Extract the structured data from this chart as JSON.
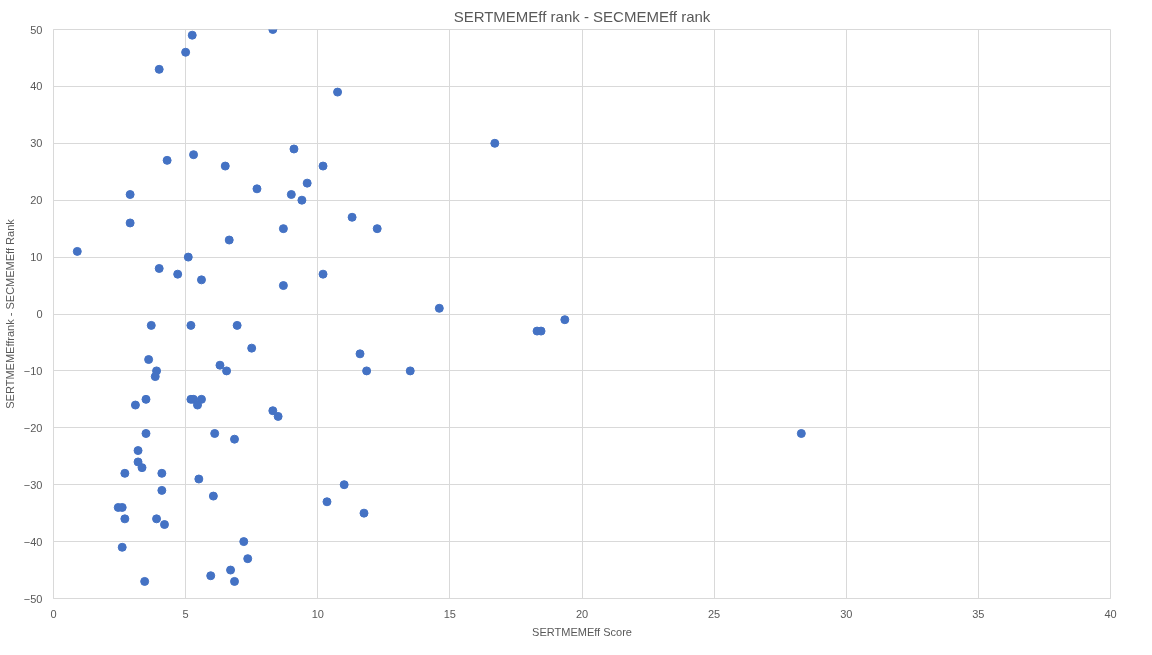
{
  "chart_data": {
    "type": "scatter",
    "title": "SERTMEMEff rank - SECMEMEff rank",
    "xlabel": "SERTMEMEff Score",
    "ylabel": "SERTMEMEffrank - SECMEMEff Rank",
    "xlim": [
      0,
      40
    ],
    "xticks": [
      0,
      5,
      10,
      15,
      20,
      25,
      30,
      35,
      40
    ],
    "ylim": [
      -50,
      50
    ],
    "yticks": [
      -50,
      -40,
      -30,
      -20,
      -10,
      0,
      10,
      20,
      30,
      40,
      50
    ],
    "grid": true,
    "marker": "circle",
    "series": [
      {
        "color": "#4472c4",
        "x": [
          0.9,
          2.9,
          2.9,
          4.0,
          4.0,
          5.0,
          5.25,
          8.3,
          4.3,
          5.3,
          4.7,
          5.1,
          5.6,
          6.5,
          7.7,
          6.65,
          9.1,
          9.0,
          9.6,
          9.4,
          8.7,
          8.7,
          10.2,
          10.2,
          10.75,
          11.3,
          12.25,
          14.6,
          16.7,
          19.35,
          18.3,
          18.45,
          28.3,
          3.7,
          5.2,
          6.95,
          7.5,
          3.6,
          3.9,
          3.85,
          6.3,
          6.55,
          11.6,
          11.85,
          13.5,
          3.5,
          3.1,
          5.2,
          5.3,
          5.6,
          5.45,
          8.3,
          8.5,
          3.5,
          6.1,
          6.85,
          3.2,
          3.2,
          3.35,
          2.7,
          4.1,
          5.5,
          4.1,
          6.05,
          11.0,
          10.35,
          11.75,
          2.45,
          2.6,
          2.7,
          3.9,
          4.2,
          2.6,
          7.2,
          7.35,
          6.7,
          5.95,
          6.85,
          3.45
        ],
        "values": [
          11,
          21,
          16,
          43,
          8,
          46,
          49,
          50,
          27,
          28,
          7,
          10,
          6,
          26,
          22,
          13,
          29,
          21,
          23,
          20,
          15,
          5,
          26,
          7,
          39,
          17,
          15,
          1,
          30,
          -1,
          -3,
          -3,
          -21,
          -2,
          -2,
          -2,
          -6,
          -8,
          -10,
          -11,
          -9,
          -10,
          -7,
          -10,
          -10,
          -15,
          -16,
          -15,
          -15,
          -15,
          -16,
          -17,
          -18,
          -21,
          -21,
          -22,
          -24,
          -26,
          -27,
          -28,
          -28,
          -29,
          -31,
          -32,
          -30,
          -33,
          -35,
          -34,
          -34,
          -36,
          -36,
          -37,
          -41,
          -40,
          -43,
          -45,
          -46,
          -47,
          -47
        ]
      }
    ]
  }
}
